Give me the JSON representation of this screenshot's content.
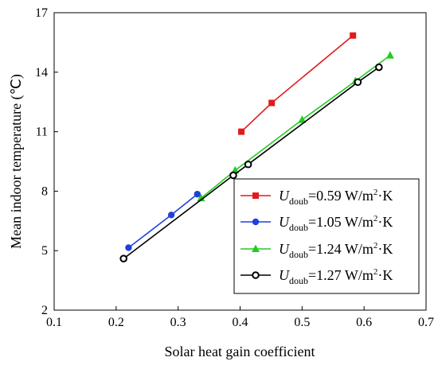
{
  "chart_data": {
    "type": "line",
    "xlabel": "Solar heat gain coefficient",
    "ylabel": "Mean indoor temperature (℃)",
    "xlim": [
      0.1,
      0.7
    ],
    "ylim": [
      2,
      17
    ],
    "xticks": [
      "0.1",
      "0.2",
      "0.3",
      "0.4",
      "0.5",
      "0.6",
      "0.7"
    ],
    "yticks": [
      "2",
      "5",
      "8",
      "11",
      "14",
      "17"
    ],
    "grid": false,
    "legend_position": "lower-right",
    "series": [
      {
        "name": "U_doub=0.59 W/m²·K",
        "legend": {
          "sym": "U",
          "sub": "doub",
          "value": "=0.59 W/m",
          "sup": "2",
          "unit": "·K"
        },
        "color": "#e31a1c",
        "marker": "square",
        "x": [
          0.402,
          0.451,
          0.582
        ],
        "y": [
          11.0,
          12.45,
          15.85
        ]
      },
      {
        "name": "U_doub=1.05 W/m²·K",
        "legend": {
          "sym": "U",
          "sub": "doub",
          "value": "=1.05 W/m",
          "sup": "2",
          "unit": "·K"
        },
        "color": "#1f3fe0",
        "marker": "circle",
        "x": [
          0.22,
          0.289,
          0.331
        ],
        "y": [
          5.15,
          6.8,
          7.85
        ]
      },
      {
        "name": "U_doub=1.24 W/m²·K",
        "legend": {
          "sym": "U",
          "sub": "doub",
          "value": "=1.24 W/m",
          "sup": "2",
          "unit": "·K"
        },
        "color": "#22cc22",
        "marker": "triangle",
        "x": [
          0.337,
          0.392,
          0.5,
          0.586,
          0.642
        ],
        "y": [
          7.65,
          9.05,
          11.6,
          13.55,
          14.85
        ]
      },
      {
        "name": "U_doub=1.27 W/m²·K",
        "legend": {
          "sym": "U",
          "sub": "doub",
          "value": "=1.27 W/m",
          "sup": "2",
          "unit": "·K"
        },
        "color": "#000000",
        "marker": "open-circle",
        "x": [
          0.212,
          0.389,
          0.413,
          0.59,
          0.624
        ],
        "y": [
          4.6,
          8.8,
          9.35,
          13.5,
          14.25
        ]
      }
    ]
  }
}
